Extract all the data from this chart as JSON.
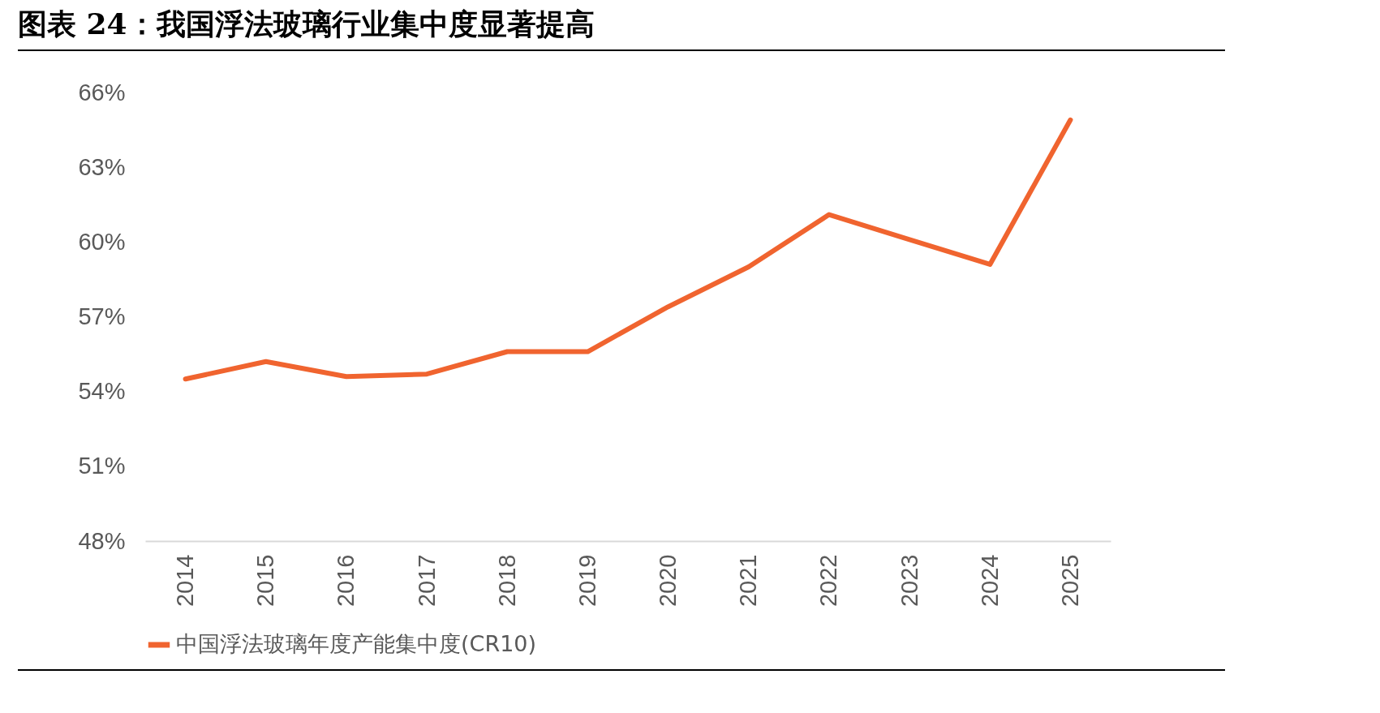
{
  "chart_data": {
    "type": "line",
    "title": "图表 24：我国浮法玻璃行业集中度显著提高",
    "categories": [
      "2014",
      "2015",
      "2016",
      "2017",
      "2018",
      "2019",
      "2020",
      "2021",
      "2022",
      "2023",
      "2024",
      "2025"
    ],
    "series": [
      {
        "name": "中国浮法玻璃年度产能集中度(CR10)",
        "color": "#f0642f",
        "values": [
          54.5,
          55.2,
          54.6,
          54.7,
          55.6,
          55.6,
          57.4,
          59.0,
          61.1,
          60.1,
          59.1,
          64.9
        ]
      }
    ],
    "ylim": [
      48,
      66
    ],
    "yticks": [
      {
        "value": 48,
        "label": "48%"
      },
      {
        "value": 51,
        "label": "51%"
      },
      {
        "value": 54,
        "label": "54%"
      },
      {
        "value": 57,
        "label": "57%"
      },
      {
        "value": 60,
        "label": "60%"
      },
      {
        "value": 63,
        "label": "63%"
      },
      {
        "value": 66,
        "label": "66%"
      }
    ],
    "grid": false,
    "legend": "bottom",
    "marker": "none",
    "line_style": "solid"
  }
}
